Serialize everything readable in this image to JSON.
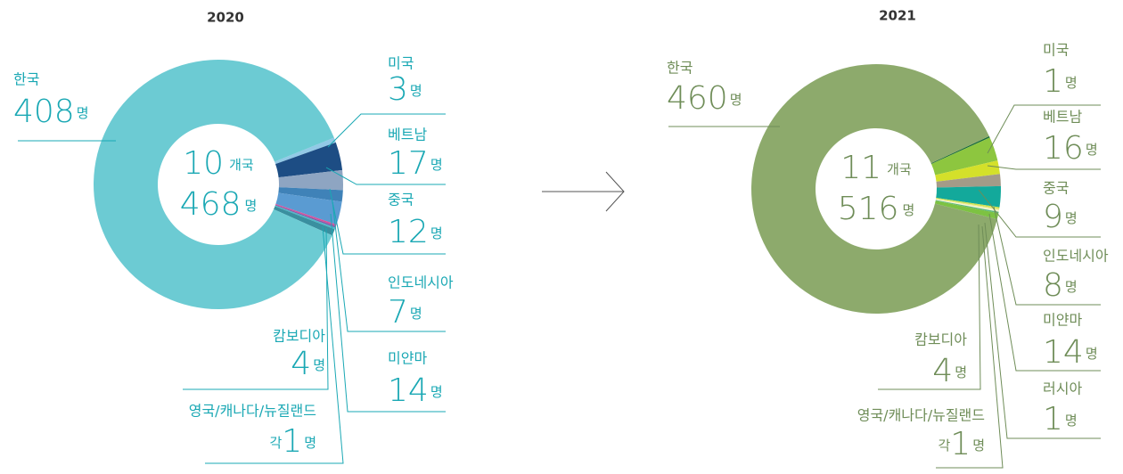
{
  "chart_data": [
    {
      "type": "donut",
      "title": "2020",
      "unit": "명",
      "center": {
        "count": 10,
        "count_unit": "개국",
        "total": 468
      },
      "slices": [
        {
          "name": "미국",
          "value": 3,
          "color": "#92c9e6"
        },
        {
          "name": "베트남",
          "value": 17,
          "color": "#1d4d84"
        },
        {
          "name": "중국",
          "value": 12,
          "color": "#8ea5c2"
        },
        {
          "name": "인도네시아",
          "value": 7,
          "color": "#3f82b8"
        },
        {
          "name": "미얀마",
          "value": 14,
          "color": "#5a9bd2"
        },
        {
          "name": "영국/캐나다/뉴질랜드",
          "value": 1,
          "prefix": "각",
          "color": [
            "#d94f9a",
            "#7f5ca8",
            "#49b9c8"
          ]
        },
        {
          "name": "캄보디아",
          "value": 4,
          "color": "#3a8f9f"
        },
        {
          "name": "한국",
          "value": 408,
          "color": "#6ccbd3"
        }
      ]
    },
    {
      "type": "donut",
      "title": "2021",
      "unit": "명",
      "center": {
        "count": 11,
        "count_unit": "개국",
        "total": 516
      },
      "slices": [
        {
          "name": "미국",
          "value": 1,
          "color": "#1b6b3a"
        },
        {
          "name": "베트남",
          "value": 16,
          "color": "#8dc63f"
        },
        {
          "name": "중국",
          "value": 9,
          "color": "#d4e02a"
        },
        {
          "name": "인도네시아",
          "value": 8,
          "color": "#a39b88"
        },
        {
          "name": "미얀마",
          "value": 14,
          "color": "#13a99b"
        },
        {
          "name": "러시아",
          "value": 1,
          "color": "#cfe04a"
        },
        {
          "name": "영국/캐나다/뉴질랜드",
          "value": 1,
          "prefix": "각",
          "color": [
            "#e9ea8c",
            "#f6f6d8",
            "#5bb77b"
          ]
        },
        {
          "name": "캄보디아",
          "value": 4,
          "color": "#7dc242"
        },
        {
          "name": "한국",
          "value": 460,
          "color": "#8daa6c"
        }
      ]
    }
  ]
}
